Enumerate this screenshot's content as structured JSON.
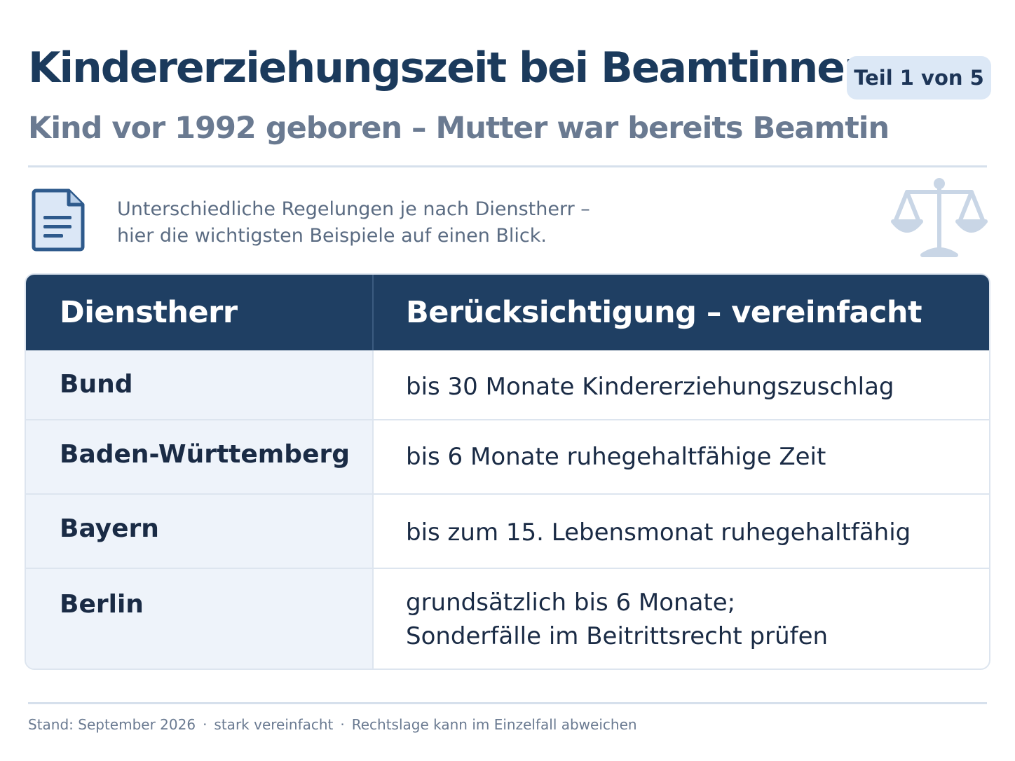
{
  "header": {
    "title": "Kindererziehungszeit bei Beamtinnen",
    "badge": "Teil 1 von 5",
    "subtitle": "Kind vor 1992 geboren – Mutter war bereits Beamtin"
  },
  "intro": {
    "line1": "Unterschiedliche Regelungen je nach Dienstherr –",
    "line2": "hier die wichtigsten Beispiele auf einen Blick.",
    "document_icon": "document-icon",
    "scale_icon": "scale-icon"
  },
  "table": {
    "headers": [
      "Dienstherr",
      "Berücksichtigung – vereinfacht"
    ],
    "rows": [
      {
        "name": "Bund",
        "value": "bis 30 Monate Kindererziehungszuschlag"
      },
      {
        "name": "Baden-Württemberg",
        "value": "bis 6 Monate ruhegehaltfähige Zeit"
      },
      {
        "name": "Bayern",
        "value": "bis zum 15. Lebensmonat ruhegehaltfähig"
      },
      {
        "name": "Berlin",
        "value": "grundsätzlich bis 6 Monate;",
        "value2": "Sonderfälle im Beitrittsrecht prüfen"
      }
    ]
  },
  "footer": {
    "items": [
      "Stand: September 2026",
      "stark vereinfacht",
      "Rechtslage kann im Einzelfall abweichen"
    ],
    "separator": "·"
  },
  "colors": {
    "title": "#1b3a5c",
    "header_bg": "#1f3f63",
    "left_column_bg": "#eef3fa",
    "badge_bg": "#dce8f6",
    "muted_text": "#6a7a91"
  }
}
